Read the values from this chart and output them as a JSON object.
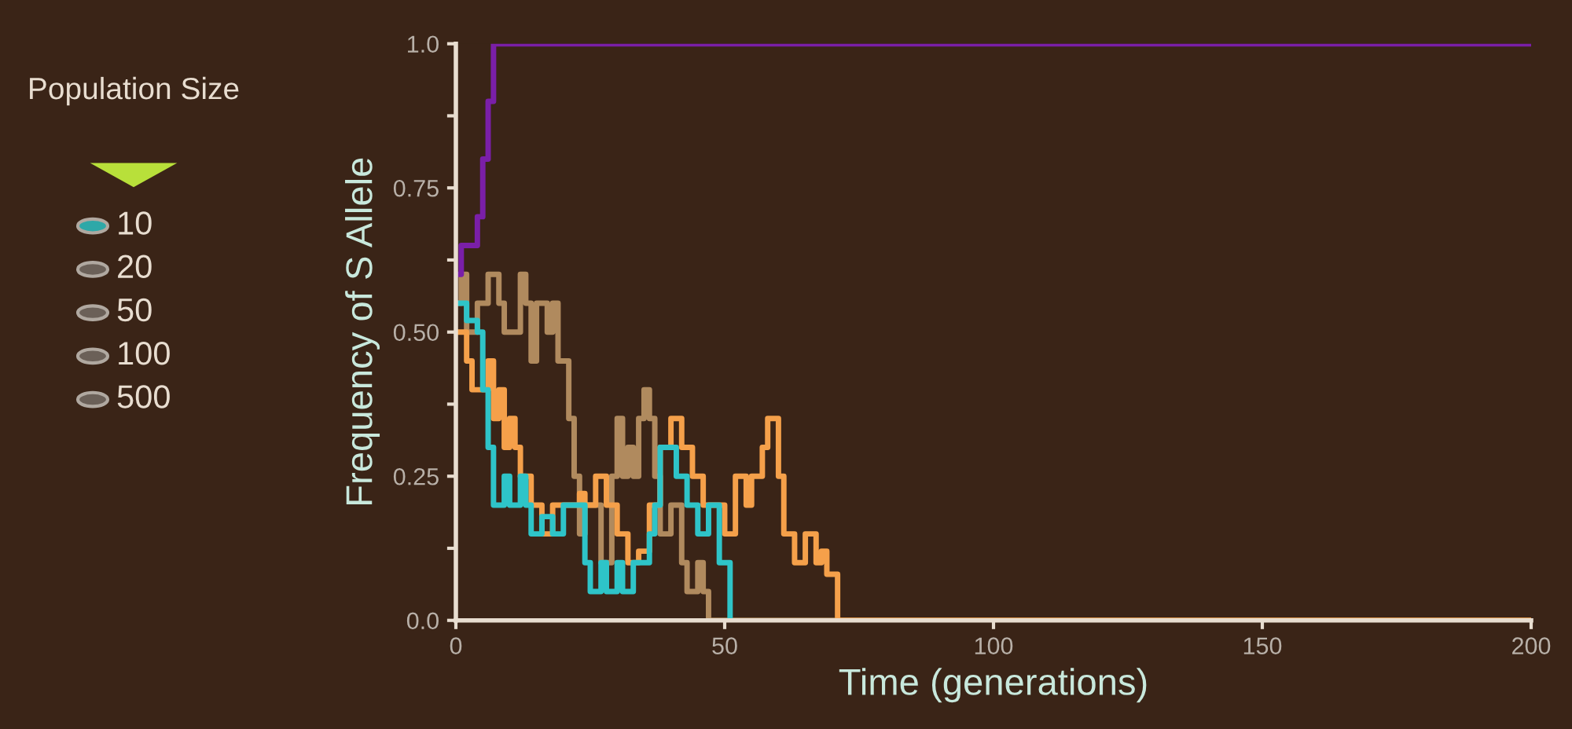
{
  "chart_data": {
    "type": "step",
    "xlabel": "Time (generations)",
    "ylabel": "Frequency of S Allele",
    "xlim": [
      0,
      200
    ],
    "ylim": [
      0,
      1
    ],
    "xticks": [
      0,
      50,
      100,
      150,
      200
    ],
    "yticks": [
      {
        "value": 0,
        "label": "0.0"
      },
      {
        "value": 0.125,
        "label": null
      },
      {
        "value": 0.25,
        "label": "0.25"
      },
      {
        "value": 0.375,
        "label": null
      },
      {
        "value": 0.5,
        "label": "0.50"
      },
      {
        "value": 0.625,
        "label": null
      },
      {
        "value": 0.75,
        "label": "0.75"
      },
      {
        "value": 0.875,
        "label": null
      },
      {
        "value": 1,
        "label": "1.0"
      }
    ],
    "grid": false,
    "legend": false,
    "line_style": "solid",
    "marker": "none",
    "annotations": [
      "Population Size",
      "10",
      "20",
      "50",
      "100",
      "500"
    ],
    "series": [
      {
        "color": "#b08a5e",
        "x": [
          0,
          1,
          2,
          4,
          6,
          8,
          9,
          11,
          12,
          13,
          14,
          15,
          17,
          18,
          19,
          21,
          22,
          23,
          24,
          26,
          27,
          29,
          30,
          31,
          32,
          33,
          34,
          35,
          36,
          37,
          38,
          40,
          42,
          43,
          45,
          46,
          47,
          200
        ],
        "values": [
          0.55,
          0.6,
          0.5,
          0.55,
          0.6,
          0.55,
          0.5,
          0.5,
          0.6,
          0.55,
          0.45,
          0.55,
          0.5,
          0.55,
          0.45,
          0.35,
          0.25,
          0.15,
          0.2,
          0.2,
          0.1,
          0.25,
          0.35,
          0.25,
          0.3,
          0.25,
          0.35,
          0.4,
          0.35,
          0.25,
          0.15,
          0.2,
          0.1,
          0.05,
          0.1,
          0.05,
          0,
          0
        ]
      },
      {
        "color": "#f5a04a",
        "x": [
          0,
          2,
          3,
          5,
          6,
          7,
          8,
          9,
          10,
          11,
          12,
          14,
          16,
          18,
          22,
          23,
          24,
          26,
          28,
          30,
          32,
          34,
          36,
          38,
          40,
          42,
          44,
          46,
          48,
          50,
          52,
          54,
          55,
          57,
          58,
          60,
          61,
          63,
          65,
          67,
          68,
          69,
          71,
          200
        ],
        "values": [
          0.5,
          0.45,
          0.4,
          0.4,
          0.45,
          0.35,
          0.4,
          0.3,
          0.35,
          0.3,
          0.25,
          0.2,
          0.15,
          0.2,
          0.2,
          0.22,
          0.2,
          0.25,
          0.2,
          0.15,
          0.1,
          0.12,
          0.2,
          0.3,
          0.35,
          0.3,
          0.25,
          0.2,
          0.2,
          0.15,
          0.25,
          0.2,
          0.25,
          0.3,
          0.35,
          0.25,
          0.15,
          0.1,
          0.15,
          0.1,
          0.12,
          0.08,
          0,
          0
        ]
      },
      {
        "color": "#2ec4c8",
        "x": [
          0,
          2,
          4,
          5,
          6,
          7,
          9,
          10,
          12,
          13,
          14,
          16,
          18,
          20,
          23,
          24,
          25,
          27,
          28,
          30,
          31,
          33,
          36,
          37,
          38,
          39,
          41,
          43,
          45,
          47,
          49,
          51
        ],
        "values": [
          0.55,
          0.52,
          0.5,
          0.4,
          0.3,
          0.2,
          0.25,
          0.2,
          0.25,
          0.2,
          0.15,
          0.18,
          0.15,
          0.2,
          0.2,
          0.1,
          0.05,
          0.1,
          0.05,
          0.1,
          0.05,
          0.1,
          0.15,
          0.2,
          0.3,
          0.3,
          0.25,
          0.2,
          0.15,
          0.2,
          0.1,
          0
        ]
      },
      {
        "color": "#7a1fa8",
        "x": [
          0,
          1,
          3,
          4,
          5,
          6,
          7,
          200
        ],
        "values": [
          0.6,
          0.65,
          0.65,
          0.7,
          0.8,
          0.9,
          1,
          1
        ]
      }
    ]
  }
}
